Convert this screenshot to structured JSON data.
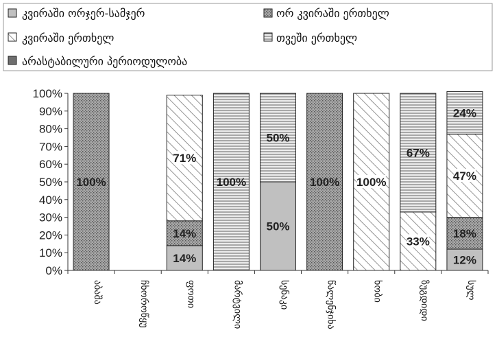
{
  "chart_data": {
    "type": "bar",
    "stacked": true,
    "percent": true,
    "title": "",
    "xlabel": "",
    "ylabel": "",
    "ylim": [
      0,
      100
    ],
    "yticks": [
      "0%",
      "10%",
      "20%",
      "30%",
      "40%",
      "50%",
      "60%",
      "70%",
      "80%",
      "90%",
      "100%"
    ],
    "grid": false,
    "legend_position": "top",
    "categories": [
      "აბაშა",
      "ჩხოროწყუ",
      "ფოთი",
      "მარტვილი",
      "სენაკი",
      "წალენჯიხა",
      "ხობი",
      "ზუგდიდი",
      "სულ"
    ],
    "series": [
      {
        "name": "კვირაში ორჯერ-სამჯერ",
        "pattern": "solid",
        "color": "#c0c0c0",
        "values": [
          0,
          0,
          14,
          0,
          50,
          0,
          0,
          0,
          12
        ],
        "labels": [
          "",
          "",
          "14%",
          "",
          "50%",
          "",
          "",
          "",
          "12%"
        ]
      },
      {
        "name": "ორ კვირაში ერთხელ",
        "pattern": "dots",
        "color": "#9a9a9a",
        "values": [
          100,
          0,
          14,
          0,
          0,
          100,
          0,
          0,
          18
        ],
        "labels": [
          "100%",
          "",
          "14%",
          "",
          "",
          "100%",
          "",
          "",
          "18%"
        ]
      },
      {
        "name": "კვირაში ერთხელ",
        "pattern": "diagonal",
        "color": "#ffffff",
        "values": [
          0,
          0,
          71,
          0,
          0,
          0,
          100,
          33,
          47
        ],
        "labels": [
          "",
          "",
          "71%",
          "",
          "",
          "",
          "100%",
          "33%",
          "47%"
        ]
      },
      {
        "name": "თვეში ერთხელ",
        "pattern": "horizontal",
        "color": "#bdbdbd",
        "values": [
          0,
          0,
          0,
          100,
          50,
          0,
          0,
          67,
          24
        ],
        "labels": [
          "",
          "",
          "",
          "100%",
          "50%",
          "",
          "",
          "67%",
          "24%"
        ]
      },
      {
        "name": "არასტაბილური პერიოდულობა",
        "pattern": "solid-dark",
        "color": "#6e6e6e",
        "values": [
          0,
          0,
          0,
          0,
          0,
          0,
          0,
          0,
          0
        ],
        "labels": [
          "",
          "",
          "",
          "",
          "",
          "",
          "",
          "",
          ""
        ]
      }
    ]
  }
}
